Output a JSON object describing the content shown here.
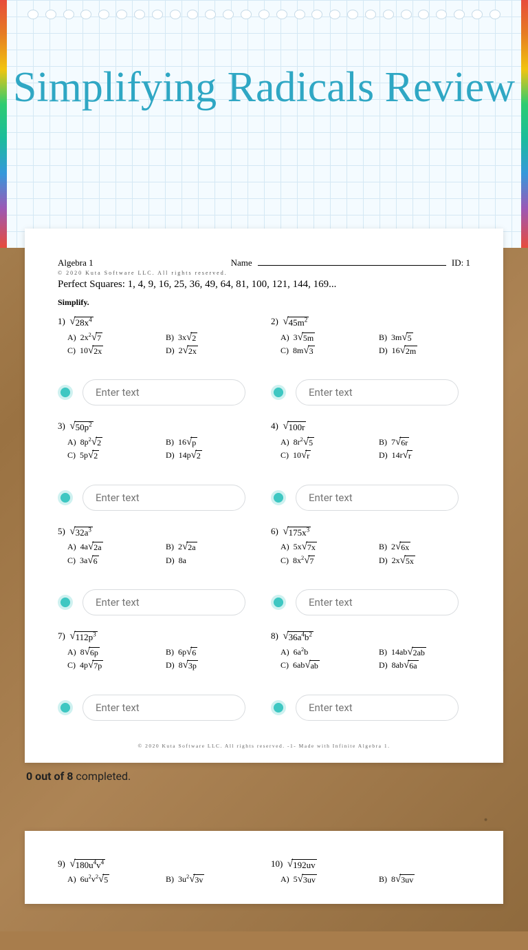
{
  "title": "Simplifying Radicals Review",
  "worksheet": {
    "course": "Algebra 1",
    "name_label": "Name",
    "id_label": "ID: 1",
    "copyright": "© 2020 Kuta Software LLC. All rights reserved.",
    "perfect_squares": "Perfect Squares: 1, 4, 9, 16, 25, 36, 49, 64, 81, 100, 121, 144, 169...",
    "simplify": "Simplify.",
    "footer": "© 2020 Kuta Software LLC. All rights reserved. -1- Made with Infinite Algebra 1.",
    "problems": [
      {
        "n": "1)",
        "rad": "28x⁴",
        "a": "2x²√7",
        "b": "3x√2",
        "c": "10√2x",
        "d": "2√2x"
      },
      {
        "n": "2)",
        "rad": "45m²",
        "a": "3√5m",
        "b": "3m√5",
        "c": "8m√3",
        "d": "16√2m"
      },
      {
        "n": "3)",
        "rad": "50p²",
        "a": "8p²√2",
        "b": "16√p",
        "c": "5p√2",
        "d": "14p√2"
      },
      {
        "n": "4)",
        "rad": "100r",
        "a": "8r²√5",
        "b": "7√6r",
        "c": "10√r",
        "d": "14r√r"
      },
      {
        "n": "5)",
        "rad": "32a³",
        "a": "4a√2a",
        "b": "2√2a",
        "c": "3a√6",
        "d": "8a"
      },
      {
        "n": "6)",
        "rad": "175x³",
        "a": "5x√7x",
        "b": "2√6x",
        "c": "8x²√7",
        "d": "2x√5x"
      },
      {
        "n": "7)",
        "rad": "112p³",
        "a": "8√6p",
        "b": "6p√6",
        "c": "4p√7p",
        "d": "8√3p"
      },
      {
        "n": "8)",
        "rad": "36a⁴b²",
        "a": "6a²b",
        "b": "14ab√2ab",
        "c": "6ab√ab",
        "d": "8ab√6a"
      }
    ],
    "problems2": [
      {
        "n": "9)",
        "rad": "180u⁴v⁴",
        "a": "6u²v²√5",
        "b": "3u²√3v"
      },
      {
        "n": "10)",
        "rad": "192uv",
        "a": "5√3uv",
        "b": "8√3uv"
      }
    ]
  },
  "input_placeholder": "Enter text",
  "progress": {
    "bold": "0 out of 8",
    "rest": " completed."
  },
  "colors": {
    "title": "#2fa7c4",
    "bullet": "#3ec7c2",
    "grid": "#d4e8f4",
    "cork": "#a87d4c"
  }
}
